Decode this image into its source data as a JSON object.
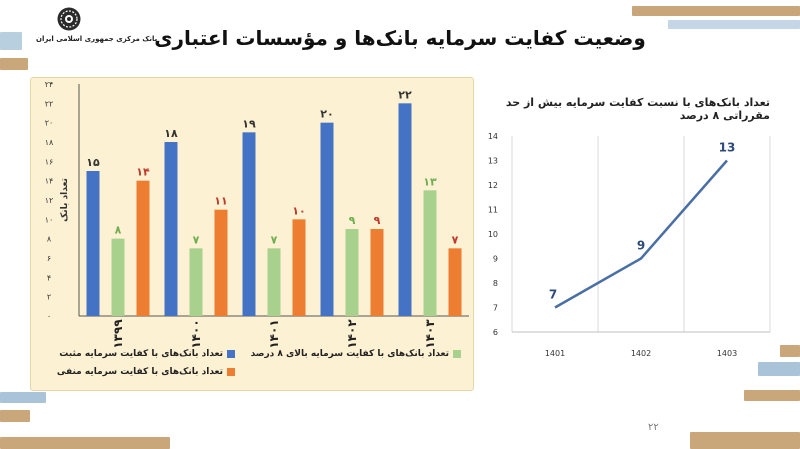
{
  "header": {
    "bank_name": "بانک مرکزی جمهوری اسلامی ایران",
    "title": "وضعیت کفایت سرمایه بانک‌ها و مؤسسات اعتباری",
    "logo_icon": "central-bank-emblem-icon"
  },
  "page_number": "۲۲",
  "colors": {
    "positive": "#4472c4",
    "above8": "#a9d18e",
    "negative": "#ed7d31",
    "line": "#4a6fa5",
    "panel": "#fdf1d3"
  },
  "chart_data": [
    {
      "type": "bar",
      "title": "",
      "xlabel": "",
      "ylabel": "تعداد بانک",
      "ylim": [
        0,
        24
      ],
      "yticks": [
        "۰",
        "۲",
        "۴",
        "۶",
        "۸",
        "۱۰",
        "۱۲",
        "۱۴",
        "۱۶",
        "۱۸",
        "۲۰",
        "۲۲",
        "۲۴"
      ],
      "categories": [
        "۱۳۹۹",
        "۱۴۰۰",
        "۱۴۰۱",
        "۱۴۰۲",
        "۱۴۰۳"
      ],
      "series": [
        {
          "name": "تعداد بانک‌های با کفایت سرمایه مثبت",
          "values": [
            15,
            18,
            19,
            20,
            22
          ],
          "labels": [
            "۱۵",
            "۱۸",
            "۱۹",
            "۲۰",
            "۲۲"
          ],
          "color": "#4472c4"
        },
        {
          "name": "تعداد بانک‌های با کفایت سرمایه بالای ۸ درصد",
          "values": [
            8,
            7,
            7,
            9,
            13
          ],
          "labels": [
            "۸",
            "۷",
            "۷",
            "۹",
            "۱۳"
          ],
          "color": "#a9d18e"
        },
        {
          "name": "تعداد بانک‌های با کفایت سرمایه منفی",
          "values": [
            14,
            11,
            10,
            9,
            7
          ],
          "labels": [
            "۱۴",
            "۱۱",
            "۱۰",
            "۹",
            "۷"
          ],
          "color": "#ed7d31"
        }
      ],
      "legend_position": "bottom"
    },
    {
      "type": "line",
      "title": "تعداد بانک‌های با نسبت کفایت سرمایه بیش از حد مقرراتی ۸ درصد",
      "xlabel": "",
      "ylabel": "",
      "x": [
        "1401",
        "1402",
        "1403"
      ],
      "ylim": [
        6,
        14
      ],
      "yticks": [
        "6",
        "7",
        "8",
        "9",
        "10",
        "11",
        "12",
        "13",
        "14"
      ],
      "series": [
        {
          "values": [
            7,
            9,
            13
          ],
          "labels": [
            "7",
            "9",
            "13"
          ]
        }
      ],
      "grid": "vertical"
    }
  ]
}
